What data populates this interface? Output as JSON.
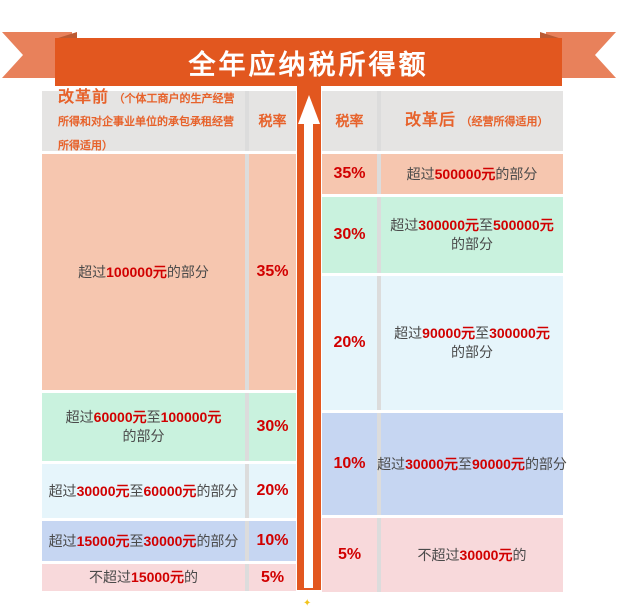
{
  "banner": {
    "title": "全年应纳税所得额"
  },
  "decor": {
    "sparkle": "✦"
  },
  "colors": {
    "banner_orange": "#E2571F",
    "ribbon_tail_orange": "#E8815B",
    "header_text_orange": "#E7622B",
    "highlight_red": "#D10000",
    "row_salmon": "#F6C6AF",
    "row_mint": "#C9F2DE",
    "row_cyan": "#E6F5FB",
    "row_blue": "#C6D6F2",
    "row_pink": "#F8D9DB"
  },
  "left_table": {
    "header": {
      "title": "改革前",
      "subtitle": "（个体工商户的生产经营所得和对企事业单位的承包承租经营所得适用）",
      "rate_label": "税率"
    },
    "rows": [
      {
        "rate": "35%",
        "bg": "salmon",
        "segments": [
          {
            "text": "超过"
          },
          {
            "text": "100000元",
            "highlight": true
          },
          {
            "text": "的部分"
          }
        ]
      },
      {
        "rate": "30%",
        "bg": "mint",
        "segments": [
          {
            "text": "超过"
          },
          {
            "text": "60000元",
            "highlight": true
          },
          {
            "text": "至"
          },
          {
            "text": "100000元",
            "highlight": true
          },
          {
            "break": true
          },
          {
            "text": "的部分"
          }
        ]
      },
      {
        "rate": "20%",
        "bg": "cyan",
        "segments": [
          {
            "text": "超过"
          },
          {
            "text": "30000元",
            "highlight": true
          },
          {
            "text": "至"
          },
          {
            "text": "60000元",
            "highlight": true
          },
          {
            "text": "的部分"
          }
        ]
      },
      {
        "rate": "10%",
        "bg": "blue",
        "segments": [
          {
            "text": "超过"
          },
          {
            "text": "15000元",
            "highlight": true
          },
          {
            "text": "至"
          },
          {
            "text": "30000元",
            "highlight": true
          },
          {
            "text": "的部分"
          }
        ]
      },
      {
        "rate": "5%",
        "bg": "pink",
        "segments": [
          {
            "text": "不超过"
          },
          {
            "text": "15000元",
            "highlight": true
          },
          {
            "text": "的"
          }
        ]
      }
    ]
  },
  "right_table": {
    "header": {
      "rate_label": "税率",
      "title": "改革后",
      "subtitle": "（经营所得适用）"
    },
    "rows": [
      {
        "rate": "35%",
        "bg": "salmon",
        "segments": [
          {
            "text": "超过"
          },
          {
            "text": "500000元",
            "highlight": true
          },
          {
            "text": "的部分"
          }
        ]
      },
      {
        "rate": "30%",
        "bg": "mint",
        "segments": [
          {
            "text": "超过"
          },
          {
            "text": "300000元",
            "highlight": true
          },
          {
            "text": "至"
          },
          {
            "text": "500000元",
            "highlight": true
          },
          {
            "break": true
          },
          {
            "text": "的部分"
          }
        ]
      },
      {
        "rate": "20%",
        "bg": "cyan",
        "segments": [
          {
            "text": "超过"
          },
          {
            "text": "90000元",
            "highlight": true
          },
          {
            "text": "至"
          },
          {
            "text": "300000元",
            "highlight": true
          },
          {
            "break": true
          },
          {
            "text": "的部分"
          }
        ]
      },
      {
        "rate": "10%",
        "bg": "blue",
        "segments": [
          {
            "text": "超过"
          },
          {
            "text": "30000元",
            "highlight": true
          },
          {
            "text": "至"
          },
          {
            "text": "90000元",
            "highlight": true
          },
          {
            "text": "的部分"
          }
        ]
      },
      {
        "rate": "5%",
        "bg": "pink",
        "segments": [
          {
            "text": "不超过"
          },
          {
            "text": "30000元",
            "highlight": true
          },
          {
            "text": "的"
          }
        ]
      }
    ]
  },
  "chart_data": [
    {
      "type": "table",
      "title": "改革前（个体工商户的生产经营所得和对企事业单位的承包承租经营所得适用）",
      "columns": [
        "全年应纳税所得额",
        "税率"
      ],
      "rows": [
        [
          "超过100000元的部分",
          "35%"
        ],
        [
          "超过60000元至100000元的部分",
          "30%"
        ],
        [
          "超过30000元至60000元的部分",
          "20%"
        ],
        [
          "超过15000元至30000元的部分",
          "10%"
        ],
        [
          "不超过15000元的",
          "5%"
        ]
      ]
    },
    {
      "type": "table",
      "title": "改革后（经营所得适用）",
      "columns": [
        "税率",
        "全年应纳税所得额"
      ],
      "rows": [
        [
          "35%",
          "超过500000元的部分"
        ],
        [
          "30%",
          "超过300000元至500000元的部分"
        ],
        [
          "20%",
          "超过90000元至300000元的部分"
        ],
        [
          "10%",
          "超过30000元至90000元的部分"
        ],
        [
          "5%",
          "不超过30000元的"
        ]
      ]
    }
  ]
}
